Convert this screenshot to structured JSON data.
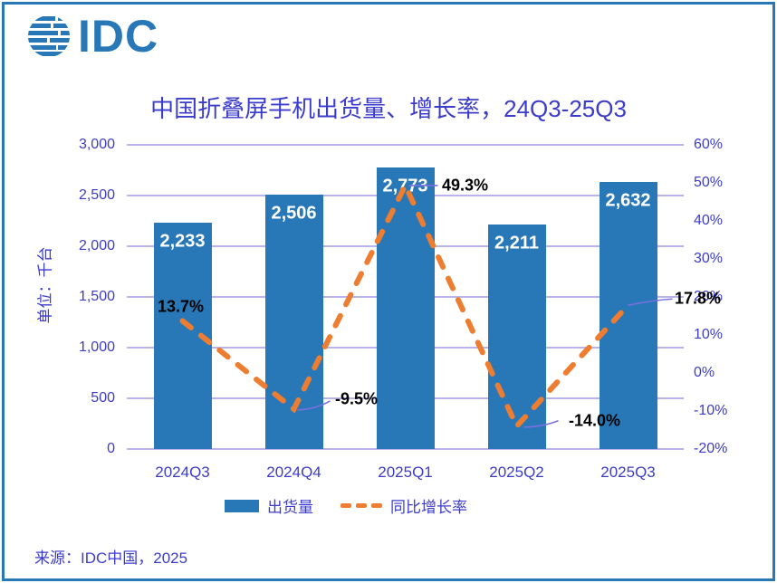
{
  "logo": {
    "text": "IDC"
  },
  "title": "中国折叠屏手机出货量、增长率，24Q3-25Q3",
  "source": "来源：IDC中国，2025",
  "colors": {
    "bar": "#2878B8",
    "line": "#ED7D31",
    "grid": "#B9B4EC",
    "text": "#3C3CCB",
    "leader": "#7B70E0",
    "border": "#2878B8",
    "bar_label": "#ffffff",
    "line_label": "#000000"
  },
  "chart_data": {
    "type": "bar",
    "title": "中国折叠屏手机出货量、增长率，24Q3-25Q3",
    "categories": [
      "2024Q3",
      "2024Q4",
      "2025Q1",
      "2025Q2",
      "2025Q3"
    ],
    "series": [
      {
        "name": "出货量",
        "type": "bar",
        "values": [
          2233,
          2506,
          2773,
          2211,
          2632
        ],
        "labels": [
          "2,233",
          "2,506",
          "2,773",
          "2,211",
          "2,632"
        ],
        "axis": "left"
      },
      {
        "name": "同比增长率",
        "type": "line-dashed",
        "values": [
          13.7,
          -9.5,
          49.3,
          -14.0,
          17.8
        ],
        "labels": [
          "13.7%",
          "-9.5%",
          "49.3%",
          "-14.0%",
          "17.8%"
        ],
        "axis": "right"
      }
    ],
    "left_axis": {
      "label": "单位：千台",
      "min": 0,
      "max": 3000,
      "ticks": [
        "3,000",
        "2,500",
        "2,000",
        "1,500",
        "1,000",
        "500",
        "0"
      ]
    },
    "right_axis": {
      "min": -20,
      "max": 60,
      "ticks": [
        "60%",
        "50%",
        "40%",
        "30%",
        "20%",
        "10%",
        "0%",
        "-10%",
        "-20%"
      ]
    },
    "legend": [
      "出货量",
      "同比增长率"
    ],
    "legend_position": "bottom",
    "grid": true
  }
}
